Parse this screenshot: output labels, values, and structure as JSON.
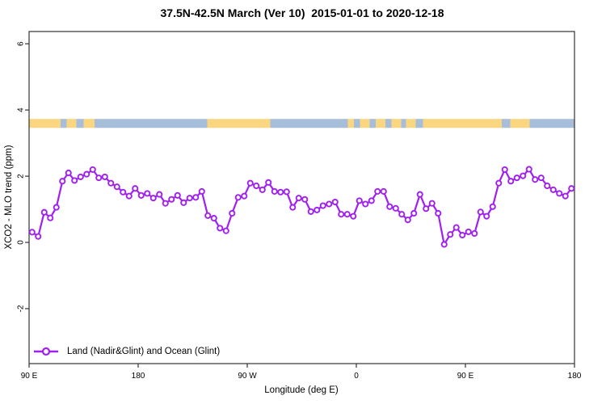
{
  "chart_data": {
    "type": "line",
    "title": "37.5N-42.5N March (Ver 10)  2015-01-01 to 2020-12-18",
    "xlabel": "Longitude (deg E)",
    "ylabel": "XCO2 - MLO trend (ppm)",
    "grid": false,
    "x_range": [
      0,
      450
    ],
    "y_range": [
      -3.66,
      6.37
    ],
    "x_ticks": [
      {
        "pos": 0,
        "label": "90 E"
      },
      {
        "pos": 90,
        "label": "180"
      },
      {
        "pos": 180,
        "label": "90 W"
      },
      {
        "pos": 270,
        "label": "0"
      },
      {
        "pos": 360,
        "label": "90 E"
      },
      {
        "pos": 450,
        "label": "180"
      }
    ],
    "y_ticks": [
      -2,
      0,
      2,
      4,
      6
    ],
    "legend": {
      "label": "Land (Nadir&Glint) and Ocean (Glint)",
      "position": "bottom-left"
    },
    "strip": {
      "band": [
        3.46,
        3.73
      ],
      "land_color": "#FBD681",
      "ocean_color": "#A7BEDB",
      "segments": [
        {
          "from": 0,
          "to": 26,
          "surface": "land"
        },
        {
          "from": 26,
          "to": 31,
          "surface": "ocean"
        },
        {
          "from": 31,
          "to": 39,
          "surface": "land"
        },
        {
          "from": 39,
          "to": 45,
          "surface": "ocean"
        },
        {
          "from": 45,
          "to": 54,
          "surface": "land"
        },
        {
          "from": 54,
          "to": 147,
          "surface": "ocean"
        },
        {
          "from": 147,
          "to": 199,
          "surface": "land"
        },
        {
          "from": 199,
          "to": 263,
          "surface": "ocean"
        },
        {
          "from": 263,
          "to": 268,
          "surface": "land"
        },
        {
          "from": 268,
          "to": 273,
          "surface": "ocean"
        },
        {
          "from": 273,
          "to": 281,
          "surface": "land"
        },
        {
          "from": 281,
          "to": 286,
          "surface": "ocean"
        },
        {
          "from": 286,
          "to": 294,
          "surface": "land"
        },
        {
          "from": 294,
          "to": 299,
          "surface": "ocean"
        },
        {
          "from": 299,
          "to": 307,
          "surface": "land"
        },
        {
          "from": 307,
          "to": 311,
          "surface": "ocean"
        },
        {
          "from": 311,
          "to": 319,
          "surface": "land"
        },
        {
          "from": 319,
          "to": 325,
          "surface": "ocean"
        },
        {
          "from": 325,
          "to": 390,
          "surface": "land"
        },
        {
          "from": 390,
          "to": 397,
          "surface": "ocean"
        },
        {
          "from": 397,
          "to": 413,
          "surface": "land"
        },
        {
          "from": 413,
          "to": 450,
          "surface": "ocean"
        }
      ]
    },
    "series": [
      {
        "name": "Land (Nadir&Glint) and Ocean (Glint)",
        "color": "#A020F0",
        "marker": "open-circle",
        "x": [
          2.5,
          7.5,
          12.5,
          17.5,
          22.5,
          27.5,
          32.5,
          37.5,
          42.5,
          47.5,
          52.5,
          57.5,
          62.5,
          67.5,
          72.5,
          77.5,
          82.5,
          87.5,
          92.5,
          97.5,
          102.5,
          107.5,
          112.5,
          117.5,
          122.5,
          127.5,
          132.5,
          137.5,
          142.5,
          147.5,
          152.5,
          157.5,
          162.5,
          167.5,
          172.5,
          177.5,
          182.5,
          187.5,
          192.5,
          197.5,
          202.5,
          207.5,
          212.5,
          217.5,
          222.5,
          227.5,
          232.5,
          237.5,
          242.5,
          247.5,
          252.5,
          257.5,
          262.5,
          267.5,
          272.5,
          277.5,
          282.5,
          287.5,
          292.5,
          297.5,
          302.5,
          307.5,
          312.5,
          317.5,
          322.5,
          327.5,
          332.5,
          337.5,
          342.5,
          347.5,
          352.5,
          357.5,
          362.5,
          367.5,
          372.5,
          377.5,
          382.5,
          387.5,
          392.5,
          397.5,
          402.5,
          407.5,
          412.5,
          417.5,
          422.5,
          427.5,
          432.5,
          437.5,
          442.5,
          447.5
        ],
        "values": [
          0.31,
          0.18,
          0.91,
          0.74,
          1.06,
          1.85,
          2.1,
          1.87,
          1.98,
          2.06,
          2.2,
          1.95,
          1.98,
          1.79,
          1.68,
          1.52,
          1.4,
          1.63,
          1.42,
          1.48,
          1.34,
          1.45,
          1.18,
          1.3,
          1.42,
          1.2,
          1.34,
          1.36,
          1.54,
          0.81,
          0.73,
          0.43,
          0.35,
          0.88,
          1.36,
          1.4,
          1.79,
          1.71,
          1.59,
          1.81,
          1.54,
          1.52,
          1.53,
          1.06,
          1.34,
          1.3,
          0.93,
          0.98,
          1.11,
          1.16,
          1.22,
          0.85,
          0.85,
          0.79,
          1.26,
          1.16,
          1.26,
          1.54,
          1.54,
          1.08,
          1.03,
          0.85,
          0.68,
          0.88,
          1.45,
          1.02,
          1.18,
          0.88,
          -0.06,
          0.24,
          0.45,
          0.22,
          0.32,
          0.27,
          0.92,
          0.79,
          1.08,
          1.79,
          2.2,
          1.85,
          1.95,
          2.01,
          2.21,
          1.9,
          1.95,
          1.71,
          1.59,
          1.48,
          1.4,
          1.63
        ]
      }
    ]
  }
}
